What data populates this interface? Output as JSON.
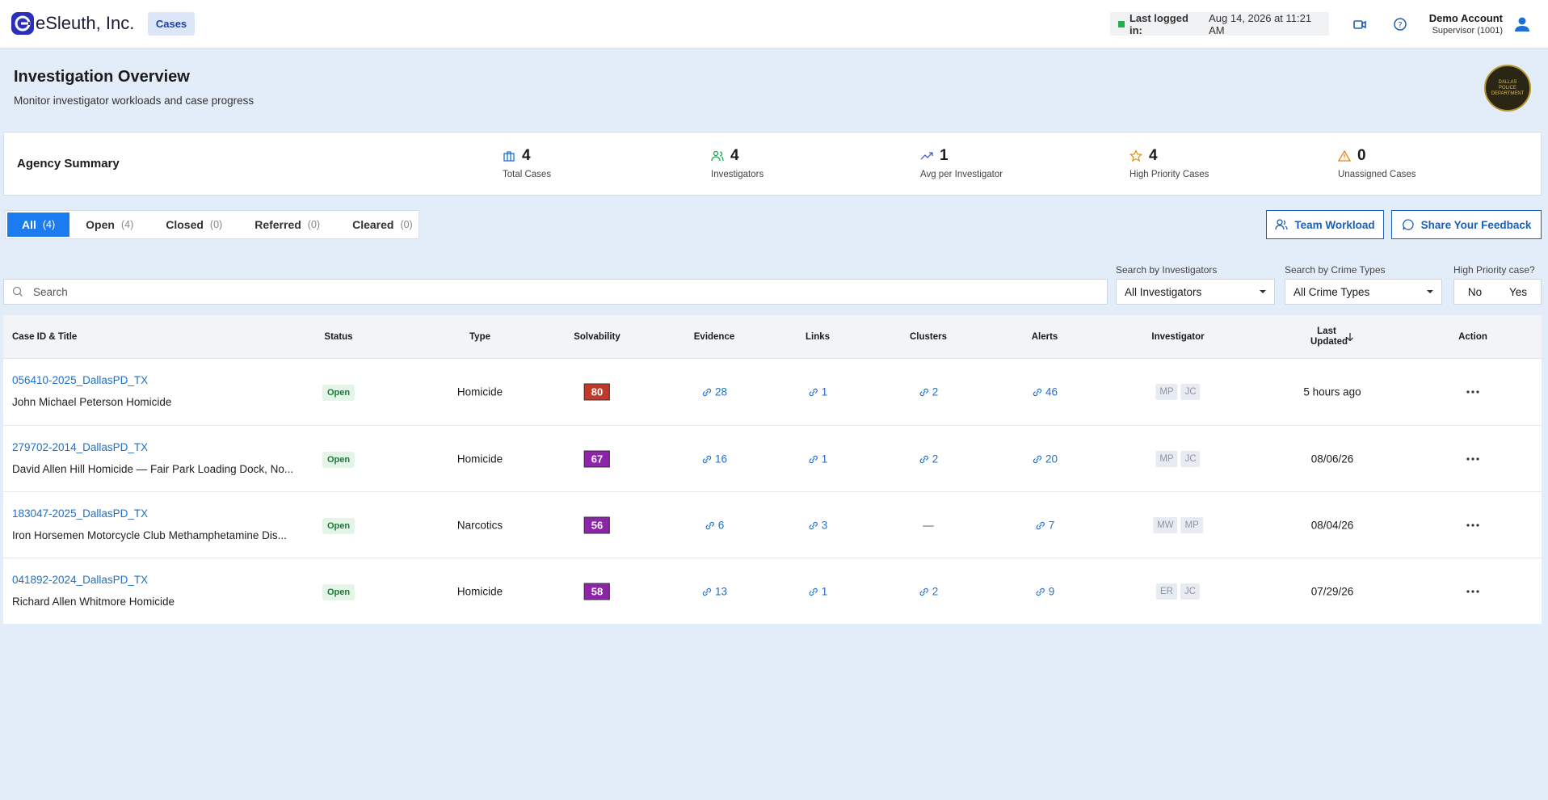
{
  "header": {
    "brand": "eSleuth, Inc.",
    "nav": "Cases",
    "last_login_label": "Last logged in:",
    "last_login_value": "Aug 14, 2026 at 11:21 AM",
    "user_name": "Demo Account",
    "user_role": "Supervisor (1001)"
  },
  "page": {
    "title": "Investigation Overview",
    "subtitle": "Monitor investigator workloads and case progress",
    "badge": "DALLAS POLICE DEPARTMENT"
  },
  "summary": {
    "title": "Agency Summary",
    "stats": [
      {
        "value": 4,
        "label": "Total Cases"
      },
      {
        "value": 4,
        "label": "Investigators"
      },
      {
        "value": 1,
        "label": "Avg per Investigator"
      },
      {
        "value": 4,
        "label": "High Priority Cases"
      },
      {
        "value": 0,
        "label": "Unassigned Cases"
      }
    ]
  },
  "tabs": [
    {
      "label": "All",
      "count": "(4)"
    },
    {
      "label": "Open",
      "count": "(4)"
    },
    {
      "label": "Closed",
      "count": "(0)"
    },
    {
      "label": "Referred",
      "count": "(0)"
    },
    {
      "label": "Cleared",
      "count": "(0)"
    }
  ],
  "actions": [
    "Team Workload",
    "Share Your Feedback"
  ],
  "filters": {
    "search_placeholder": "Search",
    "investigators_label": "Search by Investigators",
    "investigators_value": "All Investigators",
    "crime_label": "Search by Crime Types",
    "crime_value": "All Crime Types",
    "priority_label": "High Priority case?",
    "priority_options": [
      "No",
      "Yes"
    ]
  },
  "table": {
    "columns": [
      "Case ID & Title",
      "Status",
      "Type",
      "Solvability",
      "Evidence",
      "Links",
      "Clusters",
      "Alerts",
      "Investigator",
      "Last Updated",
      "Action"
    ],
    "rows": [
      {
        "case_id": "056410-2025_DallasPD_TX",
        "title": "John Michael Peterson Homicide",
        "status": "Open",
        "type": "Homicide",
        "solvability": 80,
        "solvability_color": "#c0392b",
        "evidence": 28,
        "links": 1,
        "clusters": 2,
        "alerts": 46,
        "investigators": [
          "MP",
          "JC"
        ],
        "last_updated": "5 hours ago"
      },
      {
        "case_id": "279702-2014_DallasPD_TX",
        "title": "David Allen Hill Homicide — Fair Park Loading Dock, No...",
        "status": "Open",
        "type": "Homicide",
        "solvability": 67,
        "solvability_color": "#8e24aa",
        "evidence": 16,
        "links": 1,
        "clusters": 2,
        "alerts": 20,
        "investigators": [
          "MP",
          "JC"
        ],
        "last_updated": "08/06/26"
      },
      {
        "case_id": "183047-2025_DallasPD_TX",
        "title": "Iron Horsemen Motorcycle Club Methamphetamine Dis...",
        "status": "Open",
        "type": "Narcotics",
        "solvability": 56,
        "solvability_color": "#8e24aa",
        "evidence": 6,
        "links": 3,
        "clusters": "—",
        "alerts": 7,
        "investigators": [
          "MW",
          "MP"
        ],
        "last_updated": "08/04/26"
      },
      {
        "case_id": "041892-2024_DallasPD_TX",
        "title": "Richard Allen Whitmore Homicide",
        "status": "Open",
        "type": "Homicide",
        "solvability": 58,
        "solvability_color": "#8e24aa",
        "evidence": 13,
        "links": 1,
        "clusters": 2,
        "alerts": 9,
        "investigators": [
          "ER",
          "JC"
        ],
        "last_updated": "07/29/26"
      }
    ]
  }
}
